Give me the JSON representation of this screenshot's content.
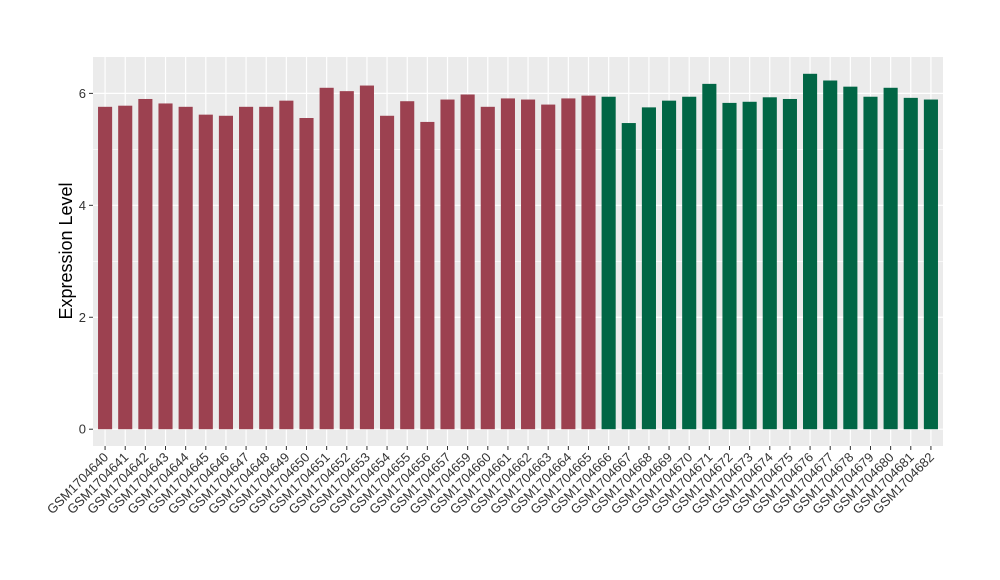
{
  "chart_data": {
    "type": "bar",
    "ylabel": "Expression Level",
    "xlabel": "",
    "ylim": [
      -0.3,
      6.65
    ],
    "yticks": [
      0,
      2,
      4,
      6
    ],
    "grid": true,
    "panel_background": "#ebebeb",
    "grid_color": "#ffffff",
    "categories": [
      "GSM1704640",
      "GSM1704641",
      "GSM1704642",
      "GSM1704643",
      "GSM1704644",
      "GSM1704645",
      "GSM1704646",
      "GSM1704647",
      "GSM1704648",
      "GSM1704649",
      "GSM1704650",
      "GSM1704651",
      "GSM1704652",
      "GSM1704653",
      "GSM1704654",
      "GSM1704655",
      "GSM1704656",
      "GSM1704657",
      "GSM1704659",
      "GSM1704660",
      "GSM1704661",
      "GSM1704662",
      "GSM1704663",
      "GSM1704664",
      "GSM1704665",
      "GSM1704666",
      "GSM1704667",
      "GSM1704668",
      "GSM1704669",
      "GSM1704670",
      "GSM1704671",
      "GSM1704672",
      "GSM1704673",
      "GSM1704674",
      "GSM1704675",
      "GSM1704676",
      "GSM1704677",
      "GSM1704678",
      "GSM1704679",
      "GSM1704680",
      "GSM1704681",
      "GSM1704682"
    ],
    "values": [
      5.76,
      5.78,
      5.9,
      5.82,
      5.76,
      5.62,
      5.6,
      5.76,
      5.76,
      5.87,
      5.56,
      6.1,
      6.04,
      6.14,
      5.6,
      5.86,
      5.49,
      5.89,
      5.98,
      5.76,
      5.91,
      5.89,
      5.8,
      5.91,
      5.96,
      5.94,
      5.47,
      5.75,
      5.87,
      5.94,
      6.17,
      5.83,
      5.85,
      5.93,
      5.9,
      6.35,
      6.23,
      6.12,
      5.94,
      6.1,
      5.92,
      5.89
    ],
    "groups": [
      1,
      1,
      1,
      1,
      1,
      1,
      1,
      1,
      1,
      1,
      1,
      1,
      1,
      1,
      1,
      1,
      1,
      1,
      1,
      1,
      1,
      1,
      1,
      1,
      1,
      2,
      2,
      2,
      2,
      2,
      2,
      2,
      2,
      2,
      2,
      2,
      2,
      2,
      2,
      2,
      2,
      2
    ],
    "colors": {
      "1": "#9c4150",
      "2": "#016645"
    }
  }
}
